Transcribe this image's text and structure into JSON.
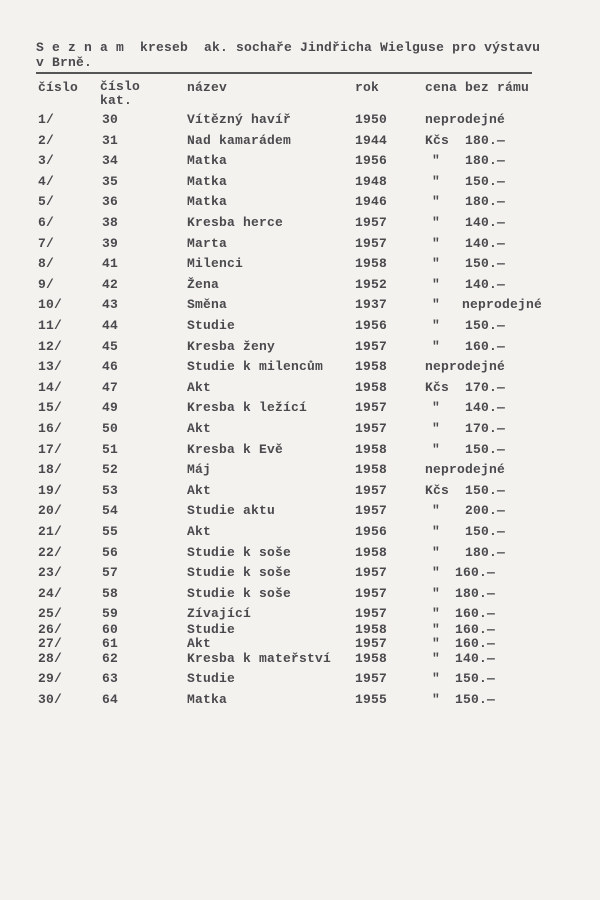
{
  "title": {
    "line1": "S e z n a m  kreseb  ak. sochaře Jindřicha Wielguse pro výstavu",
    "line2": "v Brně."
  },
  "headers": {
    "number": "číslo",
    "catalog": "číslo\nkat.",
    "name": "název",
    "year": "rok",
    "price": "cena bez rámu"
  },
  "rows": [
    {
      "no": "1/",
      "cat": "30",
      "name": "Vítězný havíř",
      "year": "1950",
      "unit": "",
      "price": "neprodejné"
    },
    {
      "no": "2/",
      "cat": "31",
      "name": "Nad kamarádem",
      "year": "1944",
      "unit": "Kčs",
      "price": "180.—"
    },
    {
      "no": "3/",
      "cat": "34",
      "name": "Matka",
      "year": "1956",
      "unit": "\"",
      "price": "180.—"
    },
    {
      "no": "4/",
      "cat": "35",
      "name": "Matka",
      "year": "1948",
      "unit": "\"",
      "price": "150.—"
    },
    {
      "no": "5/",
      "cat": "36",
      "name": "Matka",
      "year": "1946",
      "unit": "\"",
      "price": "180.—"
    },
    {
      "no": "6/",
      "cat": "38",
      "name": "Kresba herce",
      "year": "1957",
      "unit": "\"",
      "price": "140.—"
    },
    {
      "no": "7/",
      "cat": "39",
      "name": "Marta",
      "year": "1957",
      "unit": "\"",
      "price": "140.—"
    },
    {
      "no": "8/",
      "cat": "41",
      "name": "Milenci",
      "year": "1958",
      "unit": "\"",
      "price": "150.—"
    },
    {
      "no": "9/",
      "cat": "42",
      "name": "Žena",
      "year": "1952",
      "unit": "\"",
      "price": "140.—"
    },
    {
      "no": "10/",
      "cat": "43",
      "name": "Směna",
      "year": "1937",
      "unit": "\"",
      "price": "neprodejné"
    },
    {
      "no": "11/",
      "cat": "44",
      "name": "Studie",
      "year": "1956",
      "unit": "\"",
      "price": "150.—"
    },
    {
      "no": "12/",
      "cat": "45",
      "name": "Kresba ženy",
      "year": "1957",
      "unit": "\"",
      "price": "160.—"
    },
    {
      "no": "13/",
      "cat": "46",
      "name": "Studie k milencům",
      "year": "1958",
      "unit": "",
      "price": "neprodejné"
    },
    {
      "no": "14/",
      "cat": "47",
      "name": "Akt",
      "year": "1958",
      "unit": "Kčs",
      "price": "170.—"
    },
    {
      "no": "15/",
      "cat": "49",
      "name": "Kresba k ležící",
      "year": "1957",
      "unit": "\"",
      "price": "140.—"
    },
    {
      "no": "16/",
      "cat": "50",
      "name": "Akt",
      "year": "1957",
      "unit": "\"",
      "price": "170.—"
    },
    {
      "no": "17/",
      "cat": "51",
      "name": "Kresba k Evě",
      "year": "1958",
      "unit": "\"",
      "price": "150.—"
    },
    {
      "no": "18/",
      "cat": "52",
      "name": "Máj",
      "year": "1958",
      "unit": "",
      "price": "neprodejné"
    },
    {
      "no": "19/",
      "cat": "53",
      "name": "Akt",
      "year": "1957",
      "unit": "Kčs",
      "price": "150.—"
    },
    {
      "no": "20/",
      "cat": "54",
      "name": "Studie aktu",
      "year": "1957",
      "unit": "\"",
      "price": "200.—"
    },
    {
      "no": "21/",
      "cat": "55",
      "name": "Akt",
      "year": "1956",
      "unit": "\"",
      "price": "150.—"
    },
    {
      "no": "22/",
      "cat": "56",
      "name": "Studie k soše",
      "year": "1958",
      "unit": "\"",
      "price": "180.—"
    },
    {
      "no": "23/",
      "cat": "57",
      "name": "Studie k soše",
      "year": "1957",
      "unit": "\"",
      "price": "160.—"
    },
    {
      "no": "24/",
      "cat": "58",
      "name": "Studie k soše",
      "year": "1957",
      "unit": "\"",
      "price": "180.—"
    },
    {
      "no": "25/",
      "cat": "59",
      "name": "Zívající",
      "year": "1957",
      "unit": "\"",
      "price": "160.—"
    },
    {
      "no": "26/",
      "cat": "60",
      "name": "Studie",
      "year": "1958",
      "unit": "\"",
      "price": "160.—"
    },
    {
      "no": "27/",
      "cat": "61",
      "name": "Akt",
      "year": "1957",
      "unit": "\"",
      "price": "160.—"
    },
    {
      "no": "28/",
      "cat": "62",
      "name": "Kresba k mateřství",
      "year": "1958",
      "unit": "\"",
      "price": "140.—"
    },
    {
      "no": "29/",
      "cat": "63",
      "name": "Studie",
      "year": "1957",
      "unit": "\"",
      "price": "150.—"
    },
    {
      "no": "30/",
      "cat": "64",
      "name": "Matka",
      "year": "1955",
      "unit": "\"",
      "price": "150.—"
    }
  ]
}
